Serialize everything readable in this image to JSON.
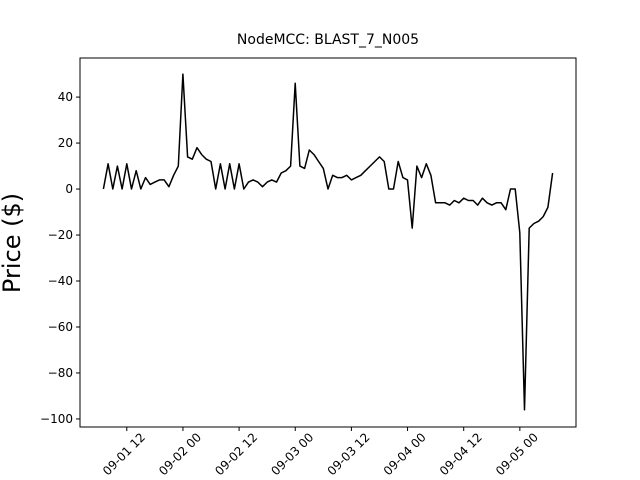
{
  "chart_data": {
    "type": "line",
    "title": "NodeMCC: BLAST_7_N005",
    "y_label": "Price ($)",
    "x": [
      "09-01 07",
      "09-01 08",
      "09-01 09",
      "09-01 10",
      "09-01 11",
      "09-01 12",
      "09-01 13",
      "09-01 14",
      "09-01 15",
      "09-01 16",
      "09-01 17",
      "09-01 18",
      "09-01 19",
      "09-01 20",
      "09-01 21",
      "09-01 22",
      "09-01 23",
      "09-02 00",
      "09-02 01",
      "09-02 02",
      "09-02 03",
      "09-02 04",
      "09-02 05",
      "09-02 06",
      "09-02 07",
      "09-02 08",
      "09-02 09",
      "09-02 10",
      "09-02 11",
      "09-02 12",
      "09-02 13",
      "09-02 14",
      "09-02 15",
      "09-02 16",
      "09-02 17",
      "09-02 18",
      "09-02 19",
      "09-02 20",
      "09-02 21",
      "09-02 22",
      "09-02 23",
      "09-03 00",
      "09-03 01",
      "09-03 02",
      "09-03 03",
      "09-03 04",
      "09-03 05",
      "09-03 06",
      "09-03 07",
      "09-03 08",
      "09-03 09",
      "09-03 10",
      "09-03 11",
      "09-03 12",
      "09-03 13",
      "09-03 14",
      "09-03 15",
      "09-03 16",
      "09-03 17",
      "09-03 18",
      "09-03 19",
      "09-03 20",
      "09-03 21",
      "09-03 22",
      "09-03 23",
      "09-04 00",
      "09-04 01",
      "09-04 02",
      "09-04 03",
      "09-04 04",
      "09-04 05",
      "09-04 06",
      "09-04 07",
      "09-04 08",
      "09-04 09",
      "09-04 10",
      "09-04 11",
      "09-04 12",
      "09-04 13",
      "09-04 14",
      "09-04 15",
      "09-04 16",
      "09-04 17",
      "09-04 18",
      "09-04 19",
      "09-04 20",
      "09-04 21",
      "09-04 22",
      "09-04 23",
      "09-05 00",
      "09-05 01",
      "09-05 02",
      "09-05 03",
      "09-05 04",
      "09-05 05",
      "09-05 06",
      "09-05 07"
    ],
    "series": [
      {
        "color": "#000000",
        "values": [
          0,
          11,
          0,
          10,
          0,
          11,
          0,
          8,
          0,
          5,
          2,
          3,
          4,
          4,
          1,
          6,
          10,
          50,
          14,
          13,
          18,
          15,
          13,
          12,
          0,
          11,
          0,
          11,
          0,
          11,
          0,
          3,
          4,
          3,
          1,
          3,
          4,
          3,
          7,
          8,
          10,
          46,
          10,
          9,
          17,
          15,
          12,
          9,
          0,
          6,
          5,
          5,
          6,
          4,
          5,
          6,
          8,
          10,
          12,
          14,
          12,
          0,
          0,
          12,
          5,
          4,
          -17,
          10,
          5,
          11,
          6,
          -6,
          -6,
          -6,
          -7,
          -5,
          -6,
          -4,
          -5,
          -5,
          -7,
          -4,
          -6,
          -7,
          -6,
          -6,
          -9,
          0,
          0,
          -19,
          -96,
          -17,
          -15,
          -14,
          -12,
          -8,
          7
        ]
      }
    ],
    "xlim": [
      "09-01 02",
      "09-05 12"
    ],
    "xticks": [
      "09-01 12",
      "09-02 00",
      "09-02 12",
      "09-03 00",
      "09-03 12",
      "09-04 00",
      "09-04 12",
      "09-05 00"
    ],
    "ylim": [
      -103.5,
      57
    ],
    "yticks": [
      {
        "value": -100,
        "label": "−100"
      },
      {
        "value": -80,
        "label": "−80"
      },
      {
        "value": -60,
        "label": "−60"
      },
      {
        "value": -40,
        "label": "−40"
      },
      {
        "value": -20,
        "label": "−20"
      },
      0,
      20,
      40
    ]
  }
}
